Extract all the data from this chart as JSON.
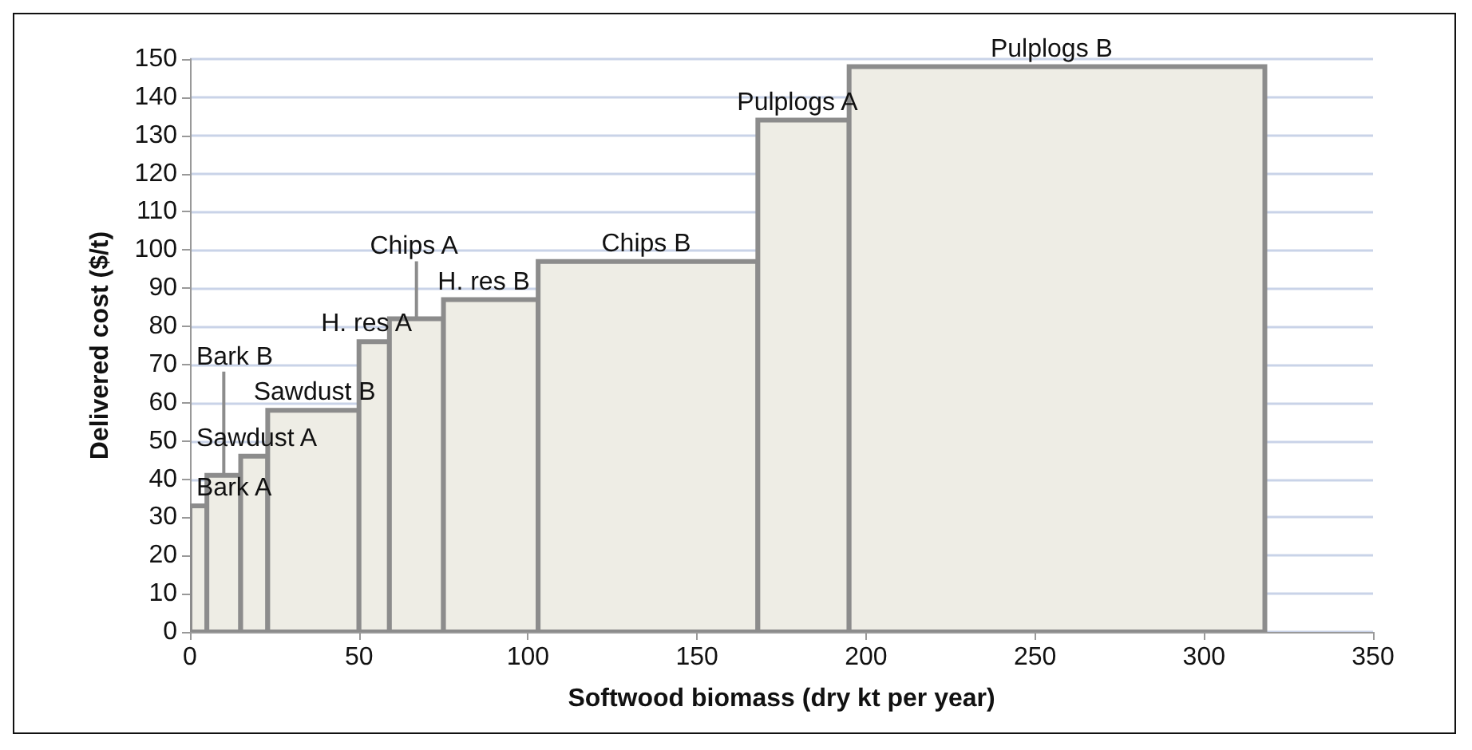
{
  "chart_data": {
    "type": "histogram",
    "xlabel": "Softwood biomass (dry kt per year)",
    "ylabel": "Delivered cost ($/t)",
    "bins": [
      0,
      5,
      15,
      23,
      50,
      59,
      75,
      103,
      168,
      195,
      318
    ],
    "values": [
      33,
      41,
      46,
      58,
      76,
      82,
      87,
      97,
      134,
      148
    ],
    "color": "#eeede5",
    "xlim": [
      0,
      350
    ],
    "xticks": [
      0,
      50,
      100,
      150,
      200,
      250,
      300,
      350
    ],
    "ylim": [
      0,
      150
    ],
    "yticks": [
      0,
      10,
      20,
      30,
      40,
      50,
      60,
      70,
      80,
      90,
      100,
      110,
      120,
      130,
      140,
      150
    ],
    "grid": "y",
    "annotations": [
      {
        "text": "Bark A",
        "x": 2.5,
        "y": 33
      },
      {
        "text": "Bark B",
        "x": 10,
        "y": 41
      },
      {
        "text": "Sawdust A",
        "x": 19,
        "y": 46
      },
      {
        "text": "Sawdust B",
        "x": 36.5,
        "y": 58
      },
      {
        "text": "H. res A",
        "x": 54.5,
        "y": 76
      },
      {
        "text": "Chips A",
        "x": 67,
        "y": 82
      },
      {
        "text": "H. res B",
        "x": 89,
        "y": 87
      },
      {
        "text": "Chips B",
        "x": 135.5,
        "y": 97
      },
      {
        "text": "Pulplogs A",
        "x": 181.5,
        "y": 134
      },
      {
        "text": "Pulplogs B",
        "x": 256.5,
        "y": 148
      }
    ]
  }
}
